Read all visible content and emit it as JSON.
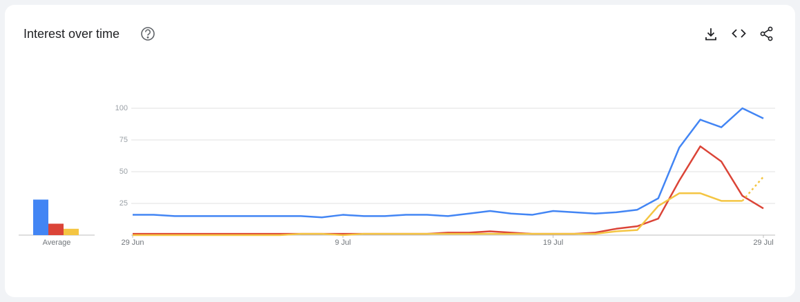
{
  "chart_data": {
    "type": "line",
    "title": "Interest over time",
    "categories": [
      "29 Jun",
      null,
      null,
      null,
      null,
      null,
      null,
      null,
      null,
      null,
      "9 Jul",
      null,
      null,
      null,
      null,
      null,
      null,
      null,
      null,
      null,
      "19 Jul",
      null,
      null,
      null,
      null,
      null,
      null,
      null,
      null,
      null,
      "29 Jul"
    ],
    "series": [
      {
        "color": "#4285f4",
        "average": 28,
        "values": [
          16,
          16,
          15,
          15,
          15,
          15,
          15,
          15,
          15,
          14,
          16,
          15,
          15,
          16,
          16,
          15,
          17,
          19,
          17,
          16,
          19,
          18,
          17,
          18,
          20,
          29,
          69,
          91,
          85,
          100,
          92
        ]
      },
      {
        "color": "#db4437",
        "average": 9,
        "values": [
          1,
          1,
          1,
          1,
          1,
          1,
          1,
          1,
          1,
          1,
          1,
          1,
          1,
          1,
          1,
          2,
          2,
          3,
          2,
          1,
          1,
          1,
          2,
          5,
          7,
          13,
          43,
          70,
          58,
          31,
          21
        ]
      },
      {
        "color": "#f4c542",
        "average": 5,
        "values": [
          0,
          0,
          0,
          0,
          0,
          0,
          0,
          0,
          1,
          1,
          0,
          1,
          1,
          1,
          1,
          1,
          1,
          1,
          1,
          1,
          1,
          1,
          1,
          3,
          4,
          23,
          33,
          33,
          27,
          27,
          46
        ],
        "partial_last": true
      }
    ],
    "average_label": "Average",
    "ylim": [
      0,
      100
    ],
    "yticks": [
      25,
      50,
      75,
      100
    ],
    "grid": true
  }
}
